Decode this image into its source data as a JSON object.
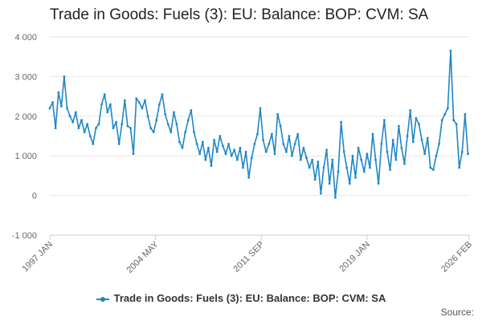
{
  "chart_data": {
    "type": "line",
    "title": "Trade in Goods: Fuels (3): EU: Balance: BOP: CVM: SA",
    "xlabel": "",
    "ylabel": "",
    "y_ticks": [
      "4 000",
      "3 000",
      "2 000",
      "1 000",
      "0",
      "-1 000"
    ],
    "y_tick_values": [
      4000,
      3000,
      2000,
      1000,
      0,
      -1000
    ],
    "ylim": [
      -1000,
      4000
    ],
    "x_ticks": [
      "1997 JAN",
      "2004 MAY",
      "2011 SEP",
      "2019 JAN",
      "2026 FEB"
    ],
    "x_tick_values": [
      1997.0,
      2004.333,
      2011.667,
      2019.0,
      2026.083
    ],
    "xlim": [
      1997.0,
      2026.083
    ],
    "grid": true,
    "legend_position": "bottom",
    "series": [
      {
        "name": "Trade in Goods: Fuels (3): EU: Balance: BOP: CVM: SA",
        "color": "#1f86c6",
        "points": [
          [
            1997.0,
            2200
          ],
          [
            1997.2,
            2350
          ],
          [
            1997.4,
            1700
          ],
          [
            1997.6,
            2600
          ],
          [
            1997.8,
            2250
          ],
          [
            1998.0,
            3000
          ],
          [
            1998.2,
            2200
          ],
          [
            1998.4,
            2000
          ],
          [
            1998.6,
            1850
          ],
          [
            1998.8,
            2100
          ],
          [
            1999.0,
            1700
          ],
          [
            1999.2,
            1900
          ],
          [
            1999.4,
            1600
          ],
          [
            1999.6,
            1800
          ],
          [
            1999.8,
            1500
          ],
          [
            2000.0,
            1300
          ],
          [
            2000.2,
            1700
          ],
          [
            2000.4,
            1800
          ],
          [
            2000.6,
            2300
          ],
          [
            2000.8,
            2550
          ],
          [
            2001.0,
            2100
          ],
          [
            2001.2,
            2300
          ],
          [
            2001.4,
            1700
          ],
          [
            2001.6,
            1850
          ],
          [
            2001.8,
            1300
          ],
          [
            2002.0,
            1800
          ],
          [
            2002.2,
            2400
          ],
          [
            2002.4,
            1750
          ],
          [
            2002.6,
            1700
          ],
          [
            2002.8,
            1050
          ],
          [
            2003.0,
            2450
          ],
          [
            2003.2,
            2350
          ],
          [
            2003.4,
            2200
          ],
          [
            2003.6,
            2400
          ],
          [
            2003.8,
            2000
          ],
          [
            2004.0,
            1700
          ],
          [
            2004.2,
            1600
          ],
          [
            2004.4,
            1900
          ],
          [
            2004.6,
            2300
          ],
          [
            2004.8,
            2550
          ],
          [
            2005.0,
            2050
          ],
          [
            2005.2,
            1800
          ],
          [
            2005.4,
            1600
          ],
          [
            2005.6,
            2100
          ],
          [
            2005.8,
            1800
          ],
          [
            2006.0,
            1350
          ],
          [
            2006.2,
            1200
          ],
          [
            2006.4,
            1600
          ],
          [
            2006.6,
            1900
          ],
          [
            2006.8,
            2150
          ],
          [
            2007.0,
            1600
          ],
          [
            2007.2,
            1300
          ],
          [
            2007.4,
            1050
          ],
          [
            2007.6,
            1350
          ],
          [
            2007.8,
            900
          ],
          [
            2008.0,
            1200
          ],
          [
            2008.2,
            750
          ],
          [
            2008.4,
            1400
          ],
          [
            2008.6,
            1100
          ],
          [
            2008.8,
            1500
          ],
          [
            2009.0,
            1250
          ],
          [
            2009.2,
            1050
          ],
          [
            2009.4,
            1300
          ],
          [
            2009.6,
            1000
          ],
          [
            2009.8,
            1150
          ],
          [
            2010.0,
            900
          ],
          [
            2010.2,
            1200
          ],
          [
            2010.4,
            700
          ],
          [
            2010.6,
            1100
          ],
          [
            2010.8,
            450
          ],
          [
            2011.0,
            950
          ],
          [
            2011.2,
            1300
          ],
          [
            2011.4,
            1550
          ],
          [
            2011.6,
            2200
          ],
          [
            2011.8,
            1400
          ],
          [
            2012.0,
            1100
          ],
          [
            2012.2,
            1300
          ],
          [
            2012.4,
            1550
          ],
          [
            2012.6,
            1050
          ],
          [
            2012.8,
            2050
          ],
          [
            2013.0,
            1750
          ],
          [
            2013.2,
            1300
          ],
          [
            2013.4,
            1100
          ],
          [
            2013.6,
            1500
          ],
          [
            2013.8,
            1000
          ],
          [
            2014.0,
            1300
          ],
          [
            2014.2,
            1550
          ],
          [
            2014.4,
            900
          ],
          [
            2014.6,
            1200
          ],
          [
            2014.8,
            950
          ],
          [
            2015.0,
            700
          ],
          [
            2015.2,
            900
          ],
          [
            2015.4,
            400
          ],
          [
            2015.6,
            850
          ],
          [
            2015.8,
            50
          ],
          [
            2016.0,
            700
          ],
          [
            2016.2,
            1150
          ],
          [
            2016.4,
            300
          ],
          [
            2016.6,
            900
          ],
          [
            2016.8,
            -50
          ],
          [
            2017.0,
            600
          ],
          [
            2017.2,
            1850
          ],
          [
            2017.4,
            1100
          ],
          [
            2017.6,
            700
          ],
          [
            2017.8,
            300
          ],
          [
            2018.0,
            1000
          ],
          [
            2018.2,
            450
          ],
          [
            2018.4,
            1200
          ],
          [
            2018.6,
            900
          ],
          [
            2018.8,
            600
          ],
          [
            2019.0,
            1050
          ],
          [
            2019.2,
            700
          ],
          [
            2019.4,
            1550
          ],
          [
            2019.6,
            900
          ],
          [
            2019.8,
            300
          ],
          [
            2020.0,
            1300
          ],
          [
            2020.2,
            1900
          ],
          [
            2020.4,
            1100
          ],
          [
            2020.6,
            650
          ],
          [
            2020.8,
            1400
          ],
          [
            2021.0,
            900
          ],
          [
            2021.2,
            1750
          ],
          [
            2021.4,
            1200
          ],
          [
            2021.6,
            800
          ],
          [
            2021.8,
            1500
          ],
          [
            2022.0,
            2150
          ],
          [
            2022.2,
            1350
          ],
          [
            2022.4,
            1950
          ],
          [
            2022.6,
            1800
          ],
          [
            2022.8,
            1400
          ],
          [
            2023.0,
            1050
          ],
          [
            2023.2,
            1450
          ],
          [
            2023.4,
            700
          ],
          [
            2023.6,
            650
          ],
          [
            2023.8,
            1000
          ],
          [
            2024.0,
            1300
          ],
          [
            2024.2,
            1900
          ],
          [
            2024.4,
            2050
          ],
          [
            2024.6,
            2200
          ],
          [
            2024.8,
            3650
          ],
          [
            2025.0,
            1900
          ],
          [
            2025.2,
            1800
          ],
          [
            2025.4,
            700
          ],
          [
            2025.6,
            1100
          ],
          [
            2025.8,
            2050
          ],
          [
            2026.0,
            1050
          ]
        ]
      }
    ],
    "legend_label": "Trade in Goods: Fuels (3): EU: Balance: BOP: CVM: SA",
    "source_label": "Source:"
  }
}
